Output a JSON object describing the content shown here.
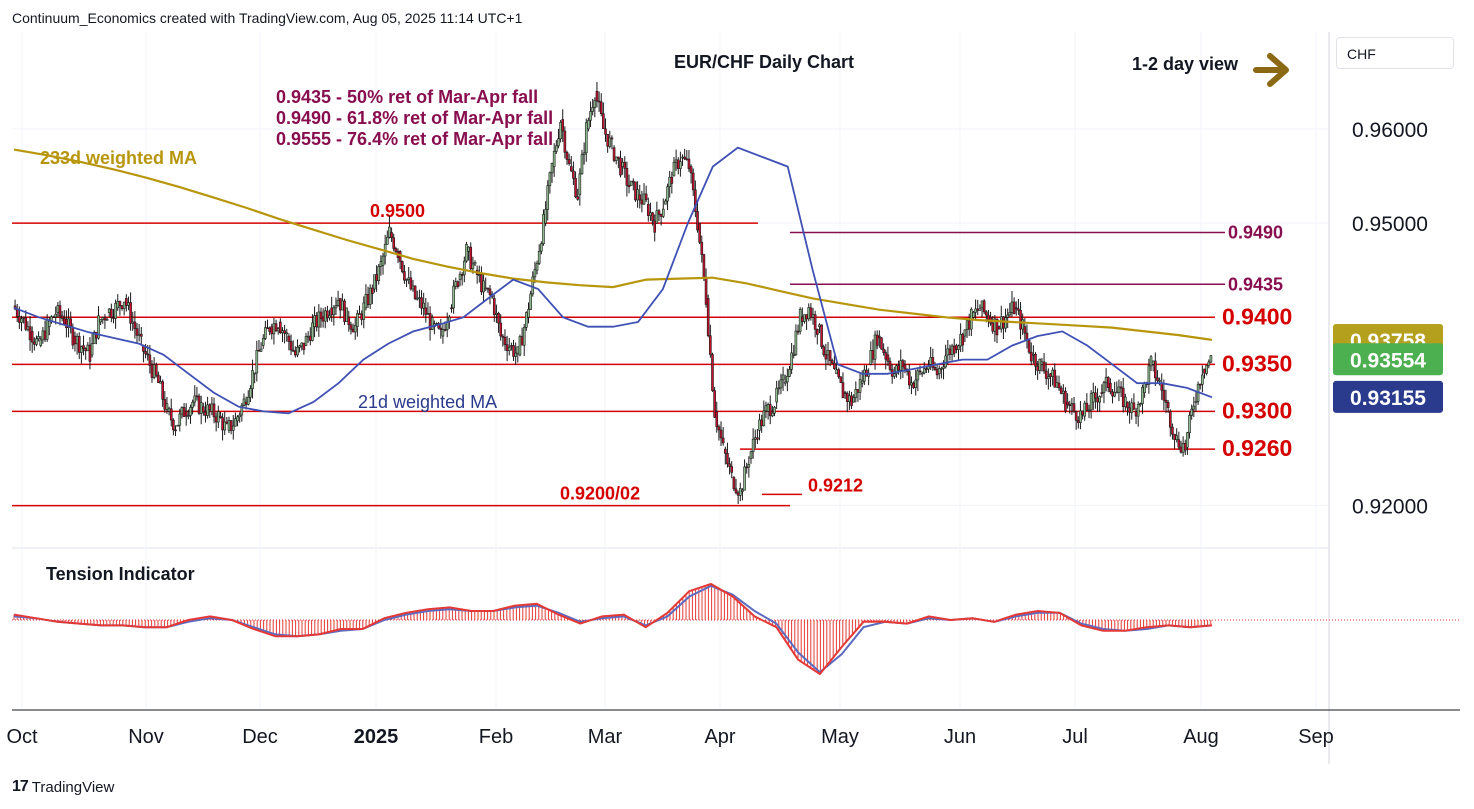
{
  "header": {
    "attribution": "Continuum_Economics created with TradingView.com, Aug 05, 2025 11:14 UTC+1"
  },
  "currency_box": "CHF",
  "footer_brand": "TradingView",
  "chart_data": {
    "type": "candlestick",
    "title": "EUR/CHF Daily Chart",
    "view_label": "1-2 day view",
    "view_arrow": "right",
    "x_ticks": [
      "Oct",
      "Nov",
      "Dec",
      "2025",
      "Feb",
      "Mar",
      "Apr",
      "May",
      "Jun",
      "Jul",
      "Aug",
      "Sep"
    ],
    "y_ticks": [
      "0.96000",
      "0.95000",
      "0.92000"
    ],
    "ylim": [
      0.9155,
      0.9705
    ],
    "grid": true,
    "ma_labels": {
      "ma233": "233d weighted MA",
      "ma21": "21d weighted MA"
    },
    "retracement_notes": [
      "0.9435 - 50% ret of Mar-Apr fall",
      "0.9490 - 61.8% ret of Mar-Apr fall",
      "0.9555 - 76.4% ret of Mar-Apr fall"
    ],
    "levels": [
      {
        "label": "0.9500",
        "value": 0.95,
        "color": "#d50000"
      },
      {
        "label": "0.9490",
        "value": 0.949,
        "color": "#880e4f"
      },
      {
        "label": "0.9435",
        "value": 0.9435,
        "color": "#880e4f"
      },
      {
        "label": "0.9400",
        "value": 0.94,
        "color": "#d50000"
      },
      {
        "label": "0.9350",
        "value": 0.935,
        "color": "#d50000"
      },
      {
        "label": "0.9300",
        "value": 0.93,
        "color": "#d50000"
      },
      {
        "label": "0.9260",
        "value": 0.926,
        "color": "#d50000"
      },
      {
        "label": "0.9212",
        "value": 0.9212,
        "color": "#d50000"
      },
      {
        "label": "0.9200/02",
        "value": 0.92,
        "color": "#d50000"
      }
    ],
    "price_tags": [
      {
        "label": "0.93758",
        "value": 0.93758,
        "color": "#b5a01e"
      },
      {
        "label": "0.93554",
        "value": 0.93554,
        "color": "#4caf50"
      },
      {
        "label": "0.93155",
        "value": 0.93155,
        "color": "#2a3a8c"
      }
    ],
    "price_series": [
      0.9412,
      0.94,
      0.9385,
      0.937,
      0.939,
      0.9405,
      0.9398,
      0.938,
      0.937,
      0.936,
      0.9395,
      0.9405,
      0.941,
      0.942,
      0.9395,
      0.937,
      0.935,
      0.933,
      0.93,
      0.9285,
      0.93,
      0.931,
      0.9305,
      0.93,
      0.9295,
      0.928,
      0.929,
      0.931,
      0.934,
      0.937,
      0.939,
      0.9395,
      0.938,
      0.936,
      0.937,
      0.939,
      0.94,
      0.941,
      0.942,
      0.94,
      0.939,
      0.941,
      0.943,
      0.9455,
      0.949,
      0.947,
      0.944,
      0.942,
      0.941,
      0.939,
      0.938,
      0.941,
      0.944,
      0.947,
      0.945,
      0.943,
      0.942,
      0.938,
      0.937,
      0.936,
      0.94,
      0.945,
      0.95,
      0.956,
      0.961,
      0.956,
      0.953,
      0.96,
      0.964,
      0.96,
      0.958,
      0.956,
      0.954,
      0.953,
      0.952,
      0.95,
      0.952,
      0.955,
      0.957,
      0.956,
      0.95,
      0.942,
      0.93,
      0.926,
      0.923,
      0.9215,
      0.925,
      0.928,
      0.93,
      0.931,
      0.933,
      0.936,
      0.94,
      0.941,
      0.939,
      0.936,
      0.934,
      0.932,
      0.931,
      0.933,
      0.935,
      0.938,
      0.936,
      0.934,
      0.935,
      0.933,
      0.934,
      0.935,
      0.934,
      0.936,
      0.937,
      0.938,
      0.94,
      0.941,
      0.94,
      0.939,
      0.94,
      0.941,
      0.939,
      0.936,
      0.935,
      0.934,
      0.933,
      0.931,
      0.93,
      0.9295,
      0.931,
      0.932,
      0.933,
      0.932,
      0.931,
      0.93,
      0.932,
      0.935,
      0.933,
      0.93,
      0.927,
      0.9262,
      0.931,
      0.9345,
      0.9355
    ],
    "ma233_series": [
      0.9578,
      0.9572,
      0.9565,
      0.9557,
      0.9548,
      0.9538,
      0.9527,
      0.9516,
      0.9504,
      0.9493,
      0.9482,
      0.9472,
      0.9462,
      0.9454,
      0.9447,
      0.9441,
      0.9437,
      0.9434,
      0.9432,
      0.944,
      0.9441,
      0.9442,
      0.9436,
      0.9428,
      0.942,
      0.9414,
      0.9408,
      0.9404,
      0.94,
      0.9397,
      0.9395,
      0.9393,
      0.9391,
      0.9389,
      0.9385,
      0.9381,
      0.9376
    ],
    "ma21_series": [
      0.941,
      0.94,
      0.9392,
      0.9384,
      0.9378,
      0.9372,
      0.936,
      0.934,
      0.932,
      0.9305,
      0.93,
      0.9298,
      0.931,
      0.933,
      0.9355,
      0.9372,
      0.9385,
      0.9392,
      0.94,
      0.942,
      0.944,
      0.943,
      0.94,
      0.939,
      0.939,
      0.9395,
      0.943,
      0.95,
      0.956,
      0.958,
      0.957,
      0.956,
      0.945,
      0.935,
      0.934,
      0.934,
      0.9345,
      0.935,
      0.9355,
      0.9355,
      0.937,
      0.938,
      0.9385,
      0.937,
      0.935,
      0.933,
      0.933,
      0.9325,
      0.9315
    ],
    "tension_indicator": {
      "label": "Tension Indicator",
      "osc_series": [
        0.3,
        0.1,
        -0.1,
        -0.2,
        -0.3,
        -0.3,
        -0.4,
        -0.4,
        0.0,
        0.2,
        0.0,
        -0.5,
        -0.9,
        -0.9,
        -0.8,
        -0.5,
        -0.5,
        0.1,
        0.4,
        0.6,
        0.7,
        0.5,
        0.5,
        0.8,
        0.9,
        0.3,
        -0.2,
        0.2,
        0.3,
        -0.4,
        0.4,
        1.6,
        2.0,
        1.3,
        0.2,
        -0.4,
        -2.2,
        -3.0,
        -1.5,
        -0.1,
        -0.1,
        -0.2,
        0.2,
        0.0,
        0.1,
        -0.1,
        0.3,
        0.5,
        0.4,
        -0.3,
        -0.6,
        -0.6,
        -0.4,
        -0.3,
        -0.4,
        -0.3
      ],
      "signal_series": [
        0.2,
        0.1,
        -0.1,
        -0.2,
        -0.3,
        -0.3,
        -0.4,
        -0.4,
        -0.1,
        0.1,
        0.0,
        -0.4,
        -0.8,
        -0.9,
        -0.8,
        -0.6,
        -0.5,
        0.0,
        0.3,
        0.5,
        0.6,
        0.5,
        0.5,
        0.7,
        0.8,
        0.4,
        -0.1,
        0.1,
        0.2,
        -0.3,
        0.2,
        1.3,
        1.9,
        1.4,
        0.5,
        -0.2,
        -1.8,
        -2.9,
        -1.9,
        -0.4,
        -0.1,
        -0.2,
        0.1,
        0.0,
        0.1,
        -0.1,
        0.2,
        0.4,
        0.4,
        -0.2,
        -0.5,
        -0.6,
        -0.5,
        -0.3,
        -0.4,
        -0.3
      ]
    }
  }
}
